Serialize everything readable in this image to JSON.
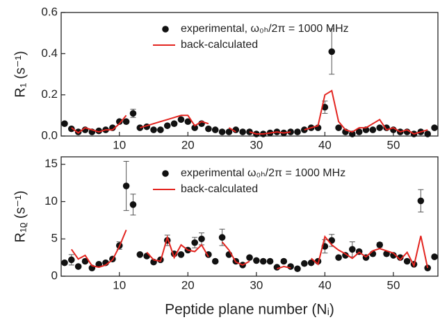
{
  "chart_data": [
    {
      "type": "scatter",
      "y_label": "R₁ (s⁻¹)",
      "legend": "upper right",
      "x": [
        2,
        3,
        4,
        5,
        6,
        7,
        8,
        9,
        10,
        11,
        12,
        13,
        14,
        15,
        16,
        17,
        18,
        19,
        20,
        21,
        22,
        23,
        24,
        25,
        26,
        27,
        28,
        29,
        30,
        31,
        32,
        33,
        34,
        35,
        36,
        37,
        38,
        39,
        40,
        41,
        42,
        43,
        44,
        45,
        46,
        47,
        48,
        49,
        50,
        51,
        52,
        53,
        54,
        55,
        56
      ],
      "xlim": [
        1.5,
        56.5
      ],
      "xticks": [
        10,
        20,
        30,
        40,
        50
      ],
      "ylim": [
        0,
        0.6
      ],
      "yticks": [
        {
          "value": 0,
          "label": "0.0"
        },
        0.2,
        0.4,
        0.6
      ],
      "series": [
        {
          "name": "experimental, ω₀ₕ/2π = 1000 MHz",
          "color": "#111111",
          "mark": "marker",
          "values": [
            0.06,
            0.035,
            0.02,
            0.03,
            0.02,
            0.025,
            0.03,
            0.04,
            0.07,
            0.07,
            0.11,
            0.04,
            0.045,
            0.03,
            0.03,
            0.05,
            0.06,
            0.08,
            0.07,
            0.04,
            0.06,
            0.035,
            0.03,
            0.02,
            0.02,
            0.03,
            0.02,
            0.02,
            0.01,
            0.01,
            0.015,
            0.02,
            0.015,
            0.02,
            0.02,
            0.03,
            0.04,
            0.04,
            0.14,
            0.41,
            0.04,
            0.02,
            0.01,
            0.02,
            0.03,
            0.03,
            0.04,
            0.04,
            0.03,
            0.02,
            0.02,
            0.01,
            0.02,
            0.01,
            0.04
          ],
          "errors": [
            null,
            null,
            null,
            null,
            null,
            null,
            null,
            null,
            null,
            null,
            0.02,
            null,
            null,
            null,
            null,
            null,
            null,
            null,
            null,
            null,
            null,
            null,
            null,
            null,
            null,
            null,
            null,
            null,
            null,
            null,
            null,
            null,
            null,
            null,
            null,
            null,
            null,
            null,
            0.03,
            0.11,
            null,
            null,
            null,
            null,
            null,
            null,
            null,
            null,
            null,
            null,
            null,
            null,
            null,
            null,
            null
          ]
        },
        {
          "name": "back-calculated",
          "color": "#e3241f",
          "mark": "line",
          "values": [
            null,
            0.04,
            0.015,
            0.04,
            0.03,
            0.02,
            0.03,
            0.03,
            0.06,
            0.1,
            null,
            0.04,
            0.05,
            0.06,
            0.07,
            0.08,
            0.09,
            0.1,
            0.1,
            0.05,
            0.07,
            0.06,
            null,
            null,
            0.04,
            0.02,
            null,
            0.02,
            0.01,
            0.01,
            0.015,
            0.02,
            0.015,
            0.02,
            null,
            0.03,
            0.04,
            0.05,
            0.2,
            0.22,
            0.07,
            0.03,
            0.02,
            0.04,
            0.04,
            0.06,
            0.08,
            0.03,
            0.04,
            0.02,
            0.03,
            0.01,
            0.02,
            0.03,
            null
          ]
        }
      ]
    },
    {
      "type": "scatter",
      "y_label": "R₁ᵨ (s⁻¹)",
      "x_label": "Peptide plane number (Nᵢ)",
      "legend": "upper right",
      "x": [
        2,
        3,
        4,
        5,
        6,
        7,
        8,
        9,
        10,
        11,
        12,
        13,
        14,
        15,
        16,
        17,
        18,
        19,
        20,
        21,
        22,
        23,
        24,
        25,
        26,
        27,
        28,
        29,
        30,
        31,
        32,
        33,
        34,
        35,
        36,
        37,
        38,
        39,
        40,
        41,
        42,
        43,
        44,
        45,
        46,
        47,
        48,
        49,
        50,
        51,
        52,
        53,
        54,
        55,
        56
      ],
      "xlim": [
        1.5,
        56.5
      ],
      "xticks": [
        10,
        20,
        30,
        40,
        50
      ],
      "ylim": [
        0,
        16
      ],
      "yticks": [
        0,
        5,
        10,
        15
      ],
      "series": [
        {
          "name": "experimental ω₀ₕ/2π = 1000 MHz",
          "color": "#111111",
          "mark": "marker",
          "values": [
            1.8,
            2.2,
            1.3,
            2.0,
            1.1,
            1.6,
            1.8,
            2.3,
            4.1,
            12.1,
            9.6,
            2.9,
            2.7,
            1.9,
            2.2,
            4.8,
            3.0,
            2.9,
            3.5,
            4.5,
            5.0,
            2.9,
            2.0,
            5.2,
            2.9,
            2.0,
            1.5,
            2.5,
            2.1,
            2.0,
            2.0,
            1.2,
            2.0,
            1.3,
            1.0,
            1.7,
            1.8,
            2.0,
            4.0,
            4.8,
            2.5,
            2.8,
            3.6,
            3.3,
            2.5,
            3.0,
            4.2,
            3.0,
            2.8,
            2.5,
            2.0,
            1.6,
            10.1,
            1.1,
            2.6
          ],
          "errors": [
            null,
            0.7,
            null,
            null,
            null,
            null,
            null,
            null,
            0.5,
            3.3,
            1.4,
            null,
            null,
            null,
            null,
            0.7,
            null,
            null,
            null,
            0.7,
            0.8,
            null,
            null,
            1.1,
            null,
            null,
            null,
            null,
            null,
            null,
            null,
            null,
            null,
            null,
            null,
            null,
            null,
            null,
            0.9,
            0.8,
            null,
            null,
            1.0,
            null,
            null,
            null,
            0.3,
            null,
            null,
            null,
            null,
            null,
            1.5,
            null,
            null
          ]
        },
        {
          "name": "back-calculated",
          "color": "#e3241f",
          "mark": "line",
          "values": [
            null,
            3.6,
            2.3,
            2.8,
            1.4,
            1.2,
            1.5,
            2.2,
            4.0,
            6.2,
            null,
            null,
            3.2,
            2.2,
            2.0,
            5.2,
            2.5,
            4.2,
            3.5,
            3.3,
            4.2,
            2.6,
            null,
            4.6,
            3.5,
            1.9,
            1.5,
            2.0,
            null,
            null,
            null,
            1.0,
            1.3,
            1.1,
            null,
            null,
            2.4,
            1.6,
            5.3,
            4.2,
            3.5,
            3.0,
            2.4,
            3.2,
            2.6,
            3.4,
            3.7,
            3.4,
            3.1,
            2.2,
            3.2,
            1.4,
            5.4,
            1.1,
            null
          ]
        }
      ]
    }
  ]
}
